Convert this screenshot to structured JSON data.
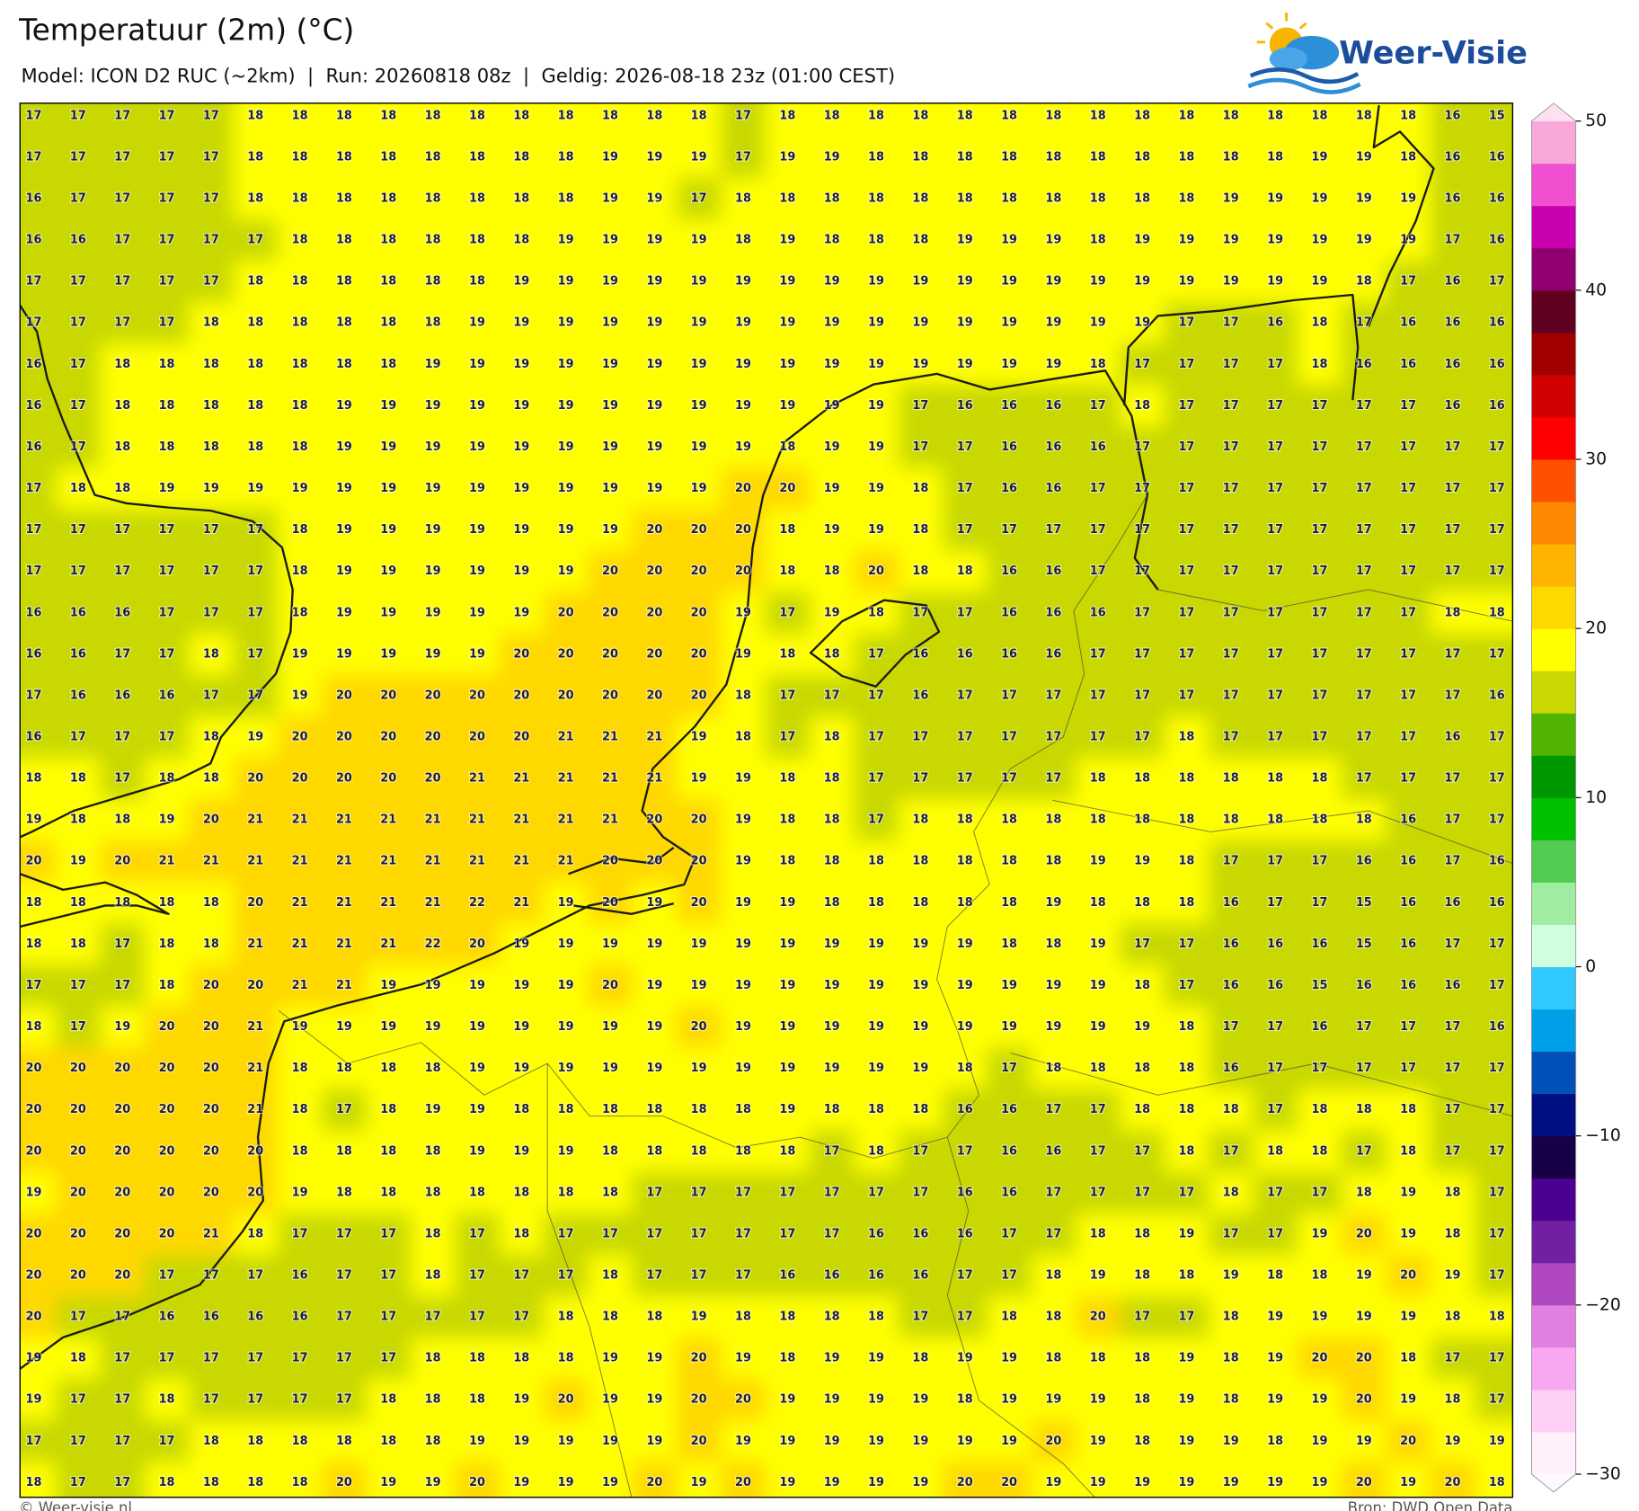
{
  "header": {
    "title": "Temperatuur (2m) (°C)",
    "subtitle": "Model: ICON D2 RUC (~2km)  |  Run: 20260818 08z  |  Geldig: 2026-08-18 23z (01:00 CEST)"
  },
  "logo": {
    "text": "Weer-Visie"
  },
  "map": {
    "rows": [
      [
        17,
        17,
        17,
        17,
        17,
        18,
        18,
        18,
        18,
        18,
        18,
        18,
        18,
        18,
        18,
        18,
        17,
        18,
        18,
        18,
        18,
        18,
        18,
        18,
        18,
        18,
        18,
        18,
        18,
        18,
        18,
        18,
        16,
        15
      ],
      [
        17,
        17,
        17,
        17,
        17,
        18,
        18,
        18,
        18,
        18,
        18,
        18,
        18,
        19,
        19,
        19,
        17,
        19,
        19,
        18,
        18,
        18,
        18,
        18,
        18,
        18,
        18,
        18,
        18,
        19,
        19,
        18,
        16,
        16
      ],
      [
        16,
        17,
        17,
        17,
        17,
        18,
        18,
        18,
        18,
        18,
        18,
        18,
        18,
        19,
        19,
        17,
        18,
        18,
        18,
        18,
        18,
        18,
        18,
        18,
        18,
        18,
        18,
        19,
        19,
        19,
        19,
        19,
        16,
        16
      ],
      [
        16,
        16,
        17,
        17,
        17,
        17,
        18,
        18,
        18,
        18,
        18,
        18,
        19,
        19,
        19,
        19,
        18,
        19,
        18,
        18,
        18,
        19,
        19,
        19,
        18,
        19,
        19,
        19,
        19,
        19,
        19,
        19,
        17,
        16
      ],
      [
        17,
        17,
        17,
        17,
        17,
        18,
        18,
        18,
        18,
        18,
        18,
        19,
        19,
        19,
        19,
        19,
        19,
        19,
        19,
        19,
        19,
        19,
        19,
        19,
        19,
        19,
        19,
        19,
        19,
        19,
        18,
        17,
        16,
        17
      ],
      [
        17,
        17,
        17,
        17,
        18,
        18,
        18,
        18,
        18,
        18,
        19,
        19,
        19,
        19,
        19,
        19,
        19,
        19,
        19,
        19,
        19,
        19,
        19,
        19,
        19,
        19,
        17,
        17,
        16,
        18,
        17,
        16,
        16,
        16
      ],
      [
        16,
        17,
        18,
        18,
        18,
        18,
        18,
        18,
        18,
        19,
        19,
        19,
        19,
        19,
        19,
        19,
        19,
        19,
        19,
        19,
        19,
        19,
        19,
        19,
        18,
        17,
        17,
        17,
        17,
        18,
        16,
        16,
        16,
        16
      ],
      [
        16,
        17,
        18,
        18,
        18,
        18,
        18,
        19,
        19,
        19,
        19,
        19,
        19,
        19,
        19,
        19,
        19,
        19,
        19,
        19,
        17,
        16,
        16,
        16,
        17,
        18,
        17,
        17,
        17,
        17,
        17,
        17,
        16,
        16
      ],
      [
        16,
        17,
        18,
        18,
        18,
        18,
        18,
        19,
        19,
        19,
        19,
        19,
        19,
        19,
        19,
        19,
        19,
        18,
        19,
        19,
        17,
        17,
        16,
        16,
        16,
        17,
        17,
        17,
        17,
        17,
        17,
        17,
        17,
        17
      ],
      [
        17,
        18,
        18,
        19,
        19,
        19,
        19,
        19,
        19,
        19,
        19,
        19,
        19,
        19,
        19,
        19,
        20,
        20,
        19,
        19,
        18,
        17,
        16,
        16,
        17,
        17,
        17,
        17,
        17,
        17,
        17,
        17,
        17,
        17
      ],
      [
        17,
        17,
        17,
        17,
        17,
        17,
        18,
        19,
        19,
        19,
        19,
        19,
        19,
        19,
        20,
        20,
        20,
        18,
        19,
        19,
        18,
        17,
        17,
        17,
        17,
        17,
        17,
        17,
        17,
        17,
        17,
        17,
        17,
        17
      ],
      [
        17,
        17,
        17,
        17,
        17,
        17,
        18,
        19,
        19,
        19,
        19,
        19,
        19,
        20,
        20,
        20,
        20,
        18,
        18,
        20,
        18,
        18,
        16,
        16,
        17,
        17,
        17,
        17,
        17,
        17,
        17,
        17,
        17,
        17
      ],
      [
        16,
        16,
        16,
        17,
        17,
        17,
        18,
        19,
        19,
        19,
        19,
        19,
        20,
        20,
        20,
        20,
        19,
        17,
        19,
        18,
        17,
        17,
        16,
        16,
        16,
        17,
        17,
        17,
        17,
        17,
        17,
        17,
        18,
        18
      ],
      [
        16,
        16,
        17,
        17,
        18,
        17,
        19,
        19,
        19,
        19,
        19,
        20,
        20,
        20,
        20,
        20,
        19,
        18,
        18,
        17,
        16,
        16,
        16,
        16,
        17,
        17,
        17,
        17,
        17,
        17,
        17,
        17,
        17,
        17
      ],
      [
        17,
        16,
        16,
        16,
        17,
        17,
        19,
        20,
        20,
        20,
        20,
        20,
        20,
        20,
        20,
        20,
        18,
        17,
        17,
        17,
        16,
        17,
        17,
        17,
        17,
        17,
        17,
        17,
        17,
        17,
        17,
        17,
        17,
        16
      ],
      [
        16,
        17,
        17,
        17,
        18,
        19,
        20,
        20,
        20,
        20,
        20,
        20,
        21,
        21,
        21,
        19,
        18,
        17,
        18,
        17,
        17,
        17,
        17,
        17,
        17,
        17,
        18,
        17,
        17,
        17,
        17,
        17,
        16,
        17
      ],
      [
        18,
        18,
        17,
        18,
        18,
        20,
        20,
        20,
        20,
        20,
        21,
        21,
        21,
        21,
        21,
        19,
        19,
        18,
        18,
        17,
        17,
        17,
        17,
        17,
        18,
        18,
        18,
        18,
        18,
        18,
        17,
        17,
        17,
        17
      ],
      [
        19,
        18,
        18,
        19,
        20,
        21,
        21,
        21,
        21,
        21,
        21,
        21,
        21,
        21,
        20,
        20,
        19,
        18,
        18,
        17,
        18,
        18,
        18,
        18,
        18,
        18,
        18,
        18,
        18,
        18,
        18,
        16,
        17,
        17
      ],
      [
        20,
        19,
        20,
        21,
        21,
        21,
        21,
        21,
        21,
        21,
        21,
        21,
        21,
        20,
        20,
        20,
        19,
        18,
        18,
        18,
        18,
        18,
        18,
        18,
        19,
        19,
        18,
        17,
        17,
        17,
        16,
        16,
        17,
        16
      ],
      [
        18,
        18,
        18,
        18,
        18,
        20,
        21,
        21,
        21,
        21,
        22,
        21,
        19,
        20,
        19,
        20,
        19,
        19,
        18,
        18,
        18,
        18,
        18,
        19,
        18,
        18,
        18,
        16,
        17,
        17,
        15,
        16,
        16,
        16
      ],
      [
        18,
        18,
        17,
        18,
        18,
        21,
        21,
        21,
        21,
        22,
        20,
        19,
        19,
        19,
        19,
        19,
        19,
        19,
        19,
        19,
        19,
        19,
        18,
        18,
        19,
        17,
        17,
        16,
        16,
        16,
        15,
        16,
        17,
        17
      ],
      [
        17,
        17,
        17,
        18,
        20,
        20,
        21,
        21,
        19,
        19,
        19,
        19,
        19,
        20,
        19,
        19,
        19,
        19,
        19,
        19,
        19,
        19,
        19,
        19,
        19,
        18,
        17,
        16,
        16,
        15,
        16,
        16,
        16,
        17
      ],
      [
        18,
        17,
        19,
        20,
        20,
        21,
        19,
        19,
        19,
        19,
        19,
        19,
        19,
        19,
        19,
        20,
        19,
        19,
        19,
        19,
        19,
        19,
        19,
        19,
        19,
        19,
        18,
        17,
        17,
        16,
        17,
        17,
        17,
        16
      ],
      [
        20,
        20,
        20,
        20,
        20,
        21,
        18,
        18,
        18,
        18,
        19,
        19,
        19,
        19,
        19,
        19,
        19,
        19,
        19,
        19,
        19,
        18,
        17,
        18,
        18,
        18,
        18,
        16,
        17,
        17,
        17,
        17,
        17,
        17
      ],
      [
        20,
        20,
        20,
        20,
        20,
        21,
        18,
        17,
        18,
        19,
        19,
        18,
        18,
        18,
        18,
        18,
        18,
        19,
        18,
        18,
        18,
        16,
        16,
        17,
        17,
        18,
        18,
        18,
        17,
        18,
        18,
        18,
        17,
        17
      ],
      [
        20,
        20,
        20,
        20,
        20,
        20,
        18,
        18,
        18,
        18,
        19,
        19,
        19,
        18,
        18,
        18,
        18,
        18,
        17,
        18,
        17,
        17,
        16,
        16,
        17,
        17,
        18,
        17,
        18,
        18,
        17,
        18,
        17,
        17
      ],
      [
        19,
        20,
        20,
        20,
        20,
        20,
        19,
        18,
        18,
        18,
        18,
        18,
        18,
        18,
        17,
        17,
        17,
        17,
        17,
        17,
        17,
        16,
        16,
        17,
        17,
        17,
        17,
        18,
        17,
        17,
        18,
        19,
        18,
        17
      ],
      [
        20,
        20,
        20,
        20,
        21,
        18,
        17,
        17,
        17,
        18,
        17,
        18,
        17,
        17,
        17,
        17,
        17,
        17,
        17,
        16,
        16,
        16,
        17,
        17,
        18,
        18,
        19,
        17,
        17,
        19,
        20,
        19,
        18,
        17
      ],
      [
        20,
        20,
        20,
        17,
        17,
        17,
        16,
        17,
        17,
        18,
        17,
        17,
        17,
        18,
        17,
        17,
        17,
        16,
        16,
        16,
        16,
        17,
        17,
        18,
        19,
        18,
        18,
        19,
        18,
        18,
        19,
        20,
        19,
        17
      ],
      [
        20,
        17,
        17,
        16,
        16,
        16,
        16,
        17,
        17,
        17,
        17,
        17,
        18,
        18,
        18,
        19,
        18,
        18,
        18,
        18,
        17,
        17,
        18,
        18,
        20,
        17,
        17,
        18,
        19,
        19,
        19,
        19,
        18,
        18
      ],
      [
        19,
        18,
        17,
        17,
        17,
        17,
        17,
        17,
        17,
        18,
        18,
        18,
        18,
        19,
        19,
        20,
        19,
        18,
        19,
        19,
        18,
        19,
        19,
        18,
        18,
        18,
        19,
        18,
        19,
        20,
        20,
        18,
        17,
        17
      ],
      [
        19,
        17,
        17,
        18,
        17,
        17,
        17,
        17,
        18,
        18,
        18,
        19,
        20,
        19,
        19,
        20,
        20,
        19,
        19,
        19,
        19,
        18,
        19,
        19,
        19,
        18,
        19,
        18,
        19,
        19,
        20,
        19,
        18,
        17
      ],
      [
        17,
        17,
        17,
        17,
        18,
        18,
        18,
        18,
        18,
        18,
        19,
        19,
        19,
        19,
        19,
        20,
        19,
        19,
        19,
        19,
        19,
        19,
        19,
        20,
        19,
        18,
        19,
        19,
        18,
        19,
        19,
        20,
        19,
        19
      ],
      [
        18,
        17,
        17,
        18,
        18,
        18,
        18,
        20,
        19,
        19,
        20,
        19,
        19,
        19,
        20,
        19,
        20,
        19,
        19,
        19,
        19,
        20,
        20,
        19,
        19,
        19,
        19,
        19,
        19,
        19,
        20,
        19,
        20,
        18
      ]
    ]
  },
  "colorbar": {
    "lim": [
      -30,
      50
    ],
    "ticks": [
      50,
      40,
      30,
      20,
      10,
      0,
      {
        "value": -10,
        "label": "−10"
      },
      {
        "value": -20,
        "label": "−20"
      },
      {
        "value": -30,
        "label": "−30"
      }
    ],
    "colors": [
      "#fff0fc",
      "#ffd0f5",
      "#f8a8f0",
      "#e080e0",
      "#b048c0",
      "#7020a0",
      "#4c0090",
      "#180048",
      "#001080",
      "#0050b8",
      "#00a0e8",
      "#30c8ff",
      "#d0ffe0",
      "#a0eca0",
      "#50cc50",
      "#00c000",
      "#009600",
      "#50b400",
      "#c8d800",
      "#ffff00",
      "#ffd800",
      "#ffb400",
      "#ff8800",
      "#ff5000",
      "#ff0000",
      "#d00000",
      "#a00000",
      "#600020",
      "#900070",
      "#c800b0",
      "#f050d0",
      "#f8a8d8"
    ],
    "over_color": "#fde0f2",
    "under_color": "#fff8fe"
  },
  "footer": {
    "left": "© Weer-visie.nl",
    "right": "Bron: DWD Open Data"
  }
}
